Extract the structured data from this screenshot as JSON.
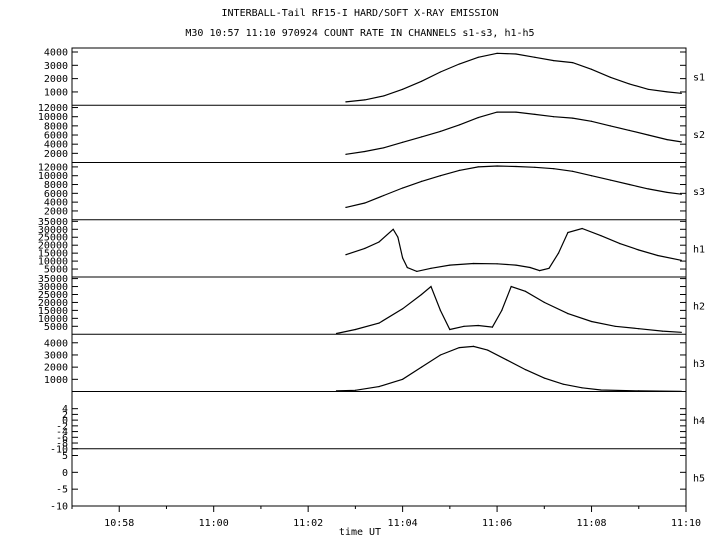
{
  "header": {
    "title": "INTERBALL-Tail RF15-I HARD/SOFT X-RAY EMISSION",
    "subtitle": "M30  10:57 11:10 970924  COUNT RATE IN CHANNELS s1-s3, h1-h5"
  },
  "chart_data": {
    "type": "line",
    "title": "INTERBALL-Tail RF15-I HARD/SOFT X-RAY EMISSION",
    "subtitle": "M30  10:57 11:10 970924  COUNT RATE IN CHANNELS s1-s3, h1-h5",
    "xlabel": "time UT",
    "x_unit": "minutes",
    "xlim": [
      "10:57",
      "11:10"
    ],
    "x_ticks": [
      "10:58",
      "11:00",
      "11:02",
      "11:04",
      "11:06",
      "11:08",
      "11:10"
    ],
    "grid": false,
    "panels": [
      {
        "name": "s1",
        "ylim": [
          0,
          4300
        ],
        "y_ticks": [
          1000,
          2000,
          3000,
          4000
        ],
        "points": [
          [
            "11:02.8",
            250
          ],
          [
            "11:03.2",
            400
          ],
          [
            "11:03.6",
            700
          ],
          [
            "11:04.0",
            1200
          ],
          [
            "11:04.4",
            1800
          ],
          [
            "11:04.8",
            2500
          ],
          [
            "11:05.2",
            3100
          ],
          [
            "11:05.6",
            3600
          ],
          [
            "11:06.0",
            3900
          ],
          [
            "11:06.4",
            3850
          ],
          [
            "11:06.8",
            3600
          ],
          [
            "11:07.2",
            3350
          ],
          [
            "11:07.6",
            3200
          ],
          [
            "11:08.0",
            2700
          ],
          [
            "11:08.4",
            2100
          ],
          [
            "11:08.8",
            1600
          ],
          [
            "11:09.2",
            1200
          ],
          [
            "11:09.6",
            1000
          ],
          [
            "11:09.9",
            900
          ]
        ]
      },
      {
        "name": "s2",
        "ylim": [
          0,
          12500
        ],
        "y_ticks": [
          2000,
          4000,
          6000,
          8000,
          10000,
          12000
        ],
        "points": [
          [
            "11:02.8",
            1800
          ],
          [
            "11:03.2",
            2400
          ],
          [
            "11:03.6",
            3200
          ],
          [
            "11:04.0",
            4400
          ],
          [
            "11:04.4",
            5600
          ],
          [
            "11:04.8",
            6800
          ],
          [
            "11:05.2",
            8200
          ],
          [
            "11:05.6",
            9800
          ],
          [
            "11:06.0",
            11000
          ],
          [
            "11:06.4",
            11000
          ],
          [
            "11:06.8",
            10500
          ],
          [
            "11:07.2",
            10000
          ],
          [
            "11:07.6",
            9700
          ],
          [
            "11:08.0",
            9000
          ],
          [
            "11:08.4",
            8000
          ],
          [
            "11:08.8",
            7000
          ],
          [
            "11:09.2",
            6000
          ],
          [
            "11:09.6",
            5000
          ],
          [
            "11:09.9",
            4500
          ]
        ]
      },
      {
        "name": "s3",
        "ylim": [
          0,
          13000
        ],
        "y_ticks": [
          2000,
          4000,
          6000,
          8000,
          10000,
          12000
        ],
        "points": [
          [
            "11:02.8",
            2800
          ],
          [
            "11:03.2",
            3800
          ],
          [
            "11:03.6",
            5500
          ],
          [
            "11:04.0",
            7200
          ],
          [
            "11:04.4",
            8700
          ],
          [
            "11:04.8",
            10000
          ],
          [
            "11:05.2",
            11200
          ],
          [
            "11:05.6",
            12000
          ],
          [
            "11:06.0",
            12200
          ],
          [
            "11:06.4",
            12100
          ],
          [
            "11:06.8",
            11900
          ],
          [
            "11:07.2",
            11600
          ],
          [
            "11:07.6",
            11000
          ],
          [
            "11:08.0",
            10000
          ],
          [
            "11:08.4",
            9000
          ],
          [
            "11:08.8",
            8000
          ],
          [
            "11:09.2",
            7000
          ],
          [
            "11:09.6",
            6200
          ],
          [
            "11:09.9",
            5800
          ]
        ]
      },
      {
        "name": "h1",
        "ylim": [
          0,
          36000
        ],
        "y_ticks": [
          5000,
          10000,
          15000,
          20000,
          25000,
          30000,
          35000
        ],
        "points": [
          [
            "11:02.8",
            14000
          ],
          [
            "11:03.2",
            18000
          ],
          [
            "11:03.5",
            22000
          ],
          [
            "11:03.8",
            30000
          ],
          [
            "11:03.9",
            25000
          ],
          [
            "11:04.0",
            12000
          ],
          [
            "11:04.1",
            6000
          ],
          [
            "11:04.3",
            3500
          ],
          [
            "11:04.6",
            5500
          ],
          [
            "11:05.0",
            7500
          ],
          [
            "11:05.5",
            8500
          ],
          [
            "11:06.0",
            8300
          ],
          [
            "11:06.4",
            7500
          ],
          [
            "11:06.7",
            6000
          ],
          [
            "11:06.9",
            4000
          ],
          [
            "11:07.1",
            5500
          ],
          [
            "11:07.3",
            15000
          ],
          [
            "11:07.5",
            28000
          ],
          [
            "11:07.8",
            30500
          ],
          [
            "11:08.2",
            26000
          ],
          [
            "11:08.6",
            21000
          ],
          [
            "11:09.0",
            17000
          ],
          [
            "11:09.4",
            13500
          ],
          [
            "11:09.9",
            10500
          ]
        ]
      },
      {
        "name": "h2",
        "ylim": [
          0,
          36000
        ],
        "y_ticks": [
          5000,
          10000,
          15000,
          20000,
          25000,
          30000,
          35000
        ],
        "points": [
          [
            "11:02.6",
            500
          ],
          [
            "11:03.0",
            3000
          ],
          [
            "11:03.5",
            7000
          ],
          [
            "11:04.0",
            16000
          ],
          [
            "11:04.4",
            25000
          ],
          [
            "11:04.6",
            30000
          ],
          [
            "11:04.8",
            15000
          ],
          [
            "11:05.0",
            3000
          ],
          [
            "11:05.3",
            5000
          ],
          [
            "11:05.6",
            5500
          ],
          [
            "11:05.9",
            4500
          ],
          [
            "11:06.1",
            15000
          ],
          [
            "11:06.3",
            30000
          ],
          [
            "11:06.6",
            27000
          ],
          [
            "11:07.0",
            20000
          ],
          [
            "11:07.5",
            13000
          ],
          [
            "11:08.0",
            8000
          ],
          [
            "11:08.5",
            5000
          ],
          [
            "11:09.0",
            3500
          ],
          [
            "11:09.5",
            2000
          ],
          [
            "11:09.9",
            1200
          ]
        ]
      },
      {
        "name": "h3",
        "ylim": [
          0,
          4700
        ],
        "y_ticks": [
          1000,
          2000,
          3000,
          4000
        ],
        "points": [
          [
            "11:02.6",
            50
          ],
          [
            "11:03.0",
            100
          ],
          [
            "11:03.5",
            400
          ],
          [
            "11:04.0",
            1000
          ],
          [
            "11:04.4",
            2000
          ],
          [
            "11:04.8",
            3000
          ],
          [
            "11:05.2",
            3600
          ],
          [
            "11:05.5",
            3700
          ],
          [
            "11:05.8",
            3400
          ],
          [
            "11:06.2",
            2600
          ],
          [
            "11:06.6",
            1800
          ],
          [
            "11:07.0",
            1100
          ],
          [
            "11:07.4",
            600
          ],
          [
            "11:07.8",
            300
          ],
          [
            "11:08.2",
            120
          ],
          [
            "11:09.0",
            50
          ],
          [
            "11:09.9",
            20
          ]
        ]
      },
      {
        "name": "h4",
        "ylim": [
          -10,
          10
        ],
        "y_ticks": [
          -10,
          -8,
          -6,
          -4,
          -2,
          0,
          2,
          4
        ],
        "points": []
      },
      {
        "name": "h5",
        "ylim": [
          -10,
          7
        ],
        "y_ticks": [
          -10,
          -5,
          0,
          5
        ],
        "points": []
      }
    ],
    "colors": {
      "line": "#000000",
      "frame": "#000000",
      "background": "#ffffff"
    }
  }
}
